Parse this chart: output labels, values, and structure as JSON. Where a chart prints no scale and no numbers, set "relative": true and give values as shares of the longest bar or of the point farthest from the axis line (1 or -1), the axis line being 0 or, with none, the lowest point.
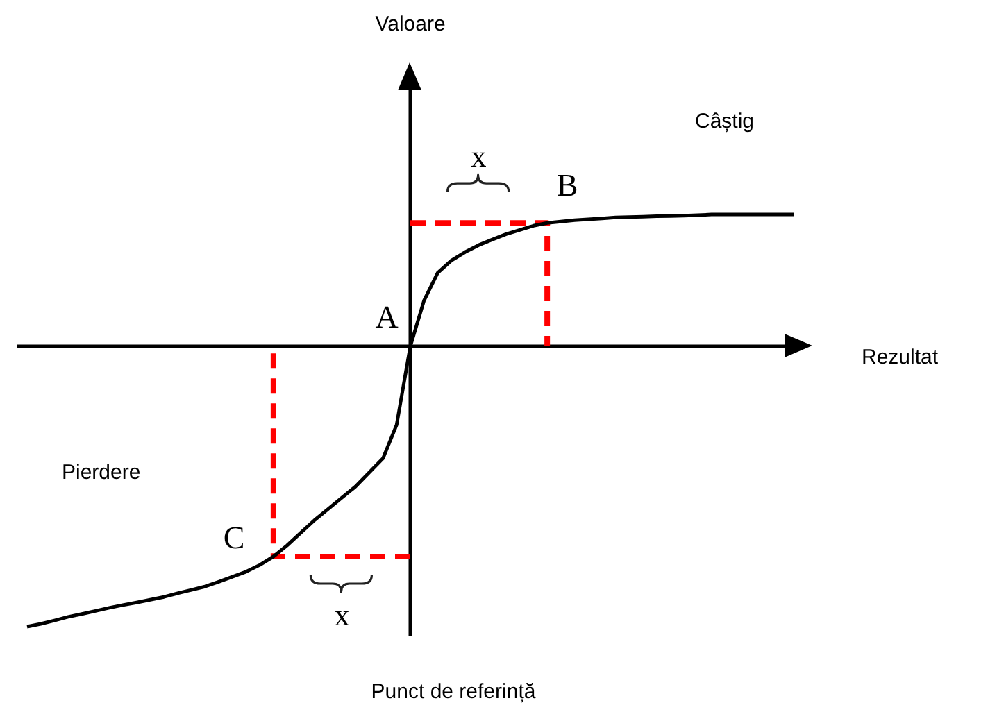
{
  "chart_data": {
    "type": "line",
    "relative": true,
    "xlabel": "Rezultat",
    "categories": [
      null,
      null,
      null,
      null,
      null,
      null,
      null,
      null,
      null,
      null,
      null,
      null,
      null,
      null,
      null,
      null,
      null,
      null,
      null,
      null,
      null,
      null,
      null,
      null,
      null,
      null,
      null,
      null,
      null,
      null,
      null,
      null,
      null,
      null,
      null,
      null,
      null,
      null,
      null,
      null,
      null,
      null,
      null,
      null,
      null,
      null,
      null,
      null,
      null,
      null,
      null,
      null,
      null,
      null,
      null,
      null,
      null
    ],
    "values": [
      -1,
      -0.99,
      -0.978,
      -0.965,
      -0.955,
      -0.944,
      -0.933,
      -0.923,
      -0.914,
      -0.904,
      -0.894,
      -0.881,
      -0.869,
      -0.857,
      -0.84,
      -0.822,
      -0.804,
      -0.78,
      -0.75,
      -0.71,
      -0.665,
      -0.62,
      -0.58,
      -0.54,
      -0.5,
      -0.45,
      -0.4,
      -0.28,
      0,
      0.163,
      0.262,
      0.306,
      0.336,
      0.361,
      0.381,
      0.4,
      0.415,
      0.43,
      0.44,
      0.445,
      0.45,
      0.453,
      0.456,
      0.46,
      0.461,
      0.462,
      0.464,
      0.465,
      0.466,
      0.468,
      0.47,
      0.47,
      0.47,
      0.47,
      0.47,
      0.47,
      0.47
    ],
    "color": "#000000",
    "ref_lines": [
      {
        "axis": "y",
        "value": 0.44,
        "label": "x",
        "color": "#ff0000",
        "line_style": "dashed"
      },
      {
        "axis": "y",
        "value": -0.75,
        "label": "x",
        "color": "#ff0000",
        "line_style": "dashed"
      }
    ],
    "annotations": [
      "Valoare",
      "Câștig",
      "Pierdere",
      "Punct de referință",
      "A",
      "B",
      "C"
    ]
  }
}
